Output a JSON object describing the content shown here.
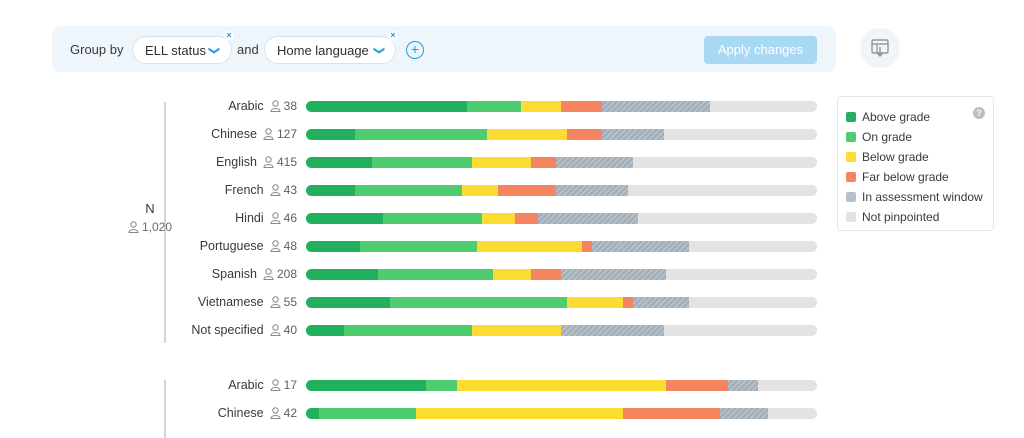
{
  "toolbar": {
    "group_by_label": "Group by",
    "group1": "ELL status",
    "and_label": "and",
    "group2": "Home language",
    "apply_label": "Apply changes",
    "plus_glyph": "+",
    "remove_glyph": "×",
    "chevron_glyph": "❯"
  },
  "legend": {
    "help_glyph": "?",
    "items": [
      {
        "label": "Above grade",
        "color": "#22b05f"
      },
      {
        "label": "On grade",
        "color": "#4fcb70"
      },
      {
        "label": "Below grade",
        "color": "#fbdc30"
      },
      {
        "label": "Far below grade",
        "color": "#f58560"
      },
      {
        "label": "In assessment window",
        "color": "#b6c0c8"
      },
      {
        "label": "Not pinpointed",
        "color": "#e3e3e3"
      }
    ]
  },
  "chart_data": {
    "type": "bar",
    "stacked": true,
    "orientation": "horizontal",
    "segments": [
      "Above grade",
      "On grade",
      "Below grade",
      "Far below grade",
      "In assessment window",
      "Not pinpointed"
    ],
    "colors": [
      "#22b05f",
      "#4fcb70",
      "#fbdc30",
      "#f58560",
      "#b6c0c8",
      "#e3e3e3"
    ],
    "units": "percent",
    "groups": [
      {
        "title": "N",
        "count": "1,020",
        "rows": [
          {
            "label": "Arabic",
            "count": "38",
            "values": [
              31.5,
              10.5,
              8,
              8,
              21,
              21
            ]
          },
          {
            "label": "Chinese",
            "count": "127",
            "values": [
              9.5,
              26,
              15.5,
              7,
              12,
              30
            ]
          },
          {
            "label": "English",
            "count": "415",
            "values": [
              13,
              19.5,
              11.5,
              5,
              15,
              36
            ]
          },
          {
            "label": "French",
            "count": "43",
            "values": [
              9.5,
              21,
              7,
              11.5,
              14,
              37
            ]
          },
          {
            "label": "Hindi",
            "count": "46",
            "values": [
              15,
              19.5,
              6.5,
              4.5,
              19.5,
              35
            ]
          },
          {
            "label": "Portuguese",
            "count": "48",
            "values": [
              10.5,
              23,
              20.5,
              2,
              19,
              25
            ]
          },
          {
            "label": "Spanish",
            "count": "208",
            "values": [
              14,
              22.5,
              7.5,
              6,
              20.5,
              29.5
            ]
          },
          {
            "label": "Vietnamese",
            "count": "55",
            "values": [
              16.5,
              34.5,
              11,
              2,
              11,
              25
            ]
          },
          {
            "label": "Not specified",
            "count": "40",
            "values": [
              7.5,
              25,
              17.5,
              0,
              20,
              30
            ]
          }
        ]
      },
      {
        "title": "",
        "count": "",
        "rows": [
          {
            "label": "Arabic",
            "count": "17",
            "values": [
              23.5,
              6,
              41,
              12,
              6,
              11.5
            ]
          },
          {
            "label": "Chinese",
            "count": "42",
            "values": [
              2.5,
              19,
              40.5,
              19,
              9.5,
              9.5
            ]
          }
        ]
      }
    ]
  }
}
